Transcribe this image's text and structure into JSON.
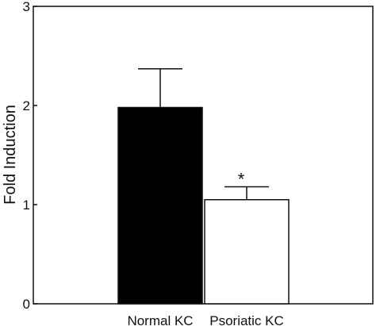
{
  "chart_data": {
    "type": "bar",
    "title": "",
    "xlabel": "",
    "ylabel": "Fold Induction",
    "ylim": [
      0,
      3
    ],
    "yticks": [
      0,
      1,
      2,
      3
    ],
    "grid": false,
    "categories": [
      "Normal KC",
      "Psoriatic KC"
    ],
    "values": [
      1.98,
      1.05
    ],
    "errors": [
      0.39,
      0.13
    ],
    "bar_fill": [
      "#000000",
      "#ffffff"
    ],
    "annotations": [
      {
        "category": "Psoriatic KC",
        "text": "*"
      }
    ]
  }
}
